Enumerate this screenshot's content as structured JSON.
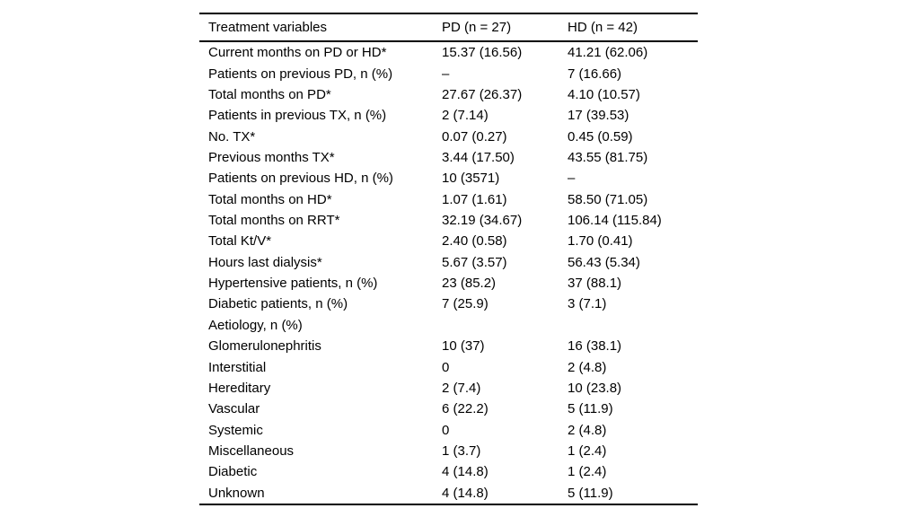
{
  "page": {
    "background": "#ffffff",
    "text_color": "#000000"
  },
  "table": {
    "columns": [
      "Treatment variables",
      "PD (n = 27)",
      "HD (n = 42)"
    ],
    "rows": [
      {
        "variable": "Current months on PD or HD*",
        "pd": "15.37 (16.56)",
        "hd": "41.21 (62.06)"
      },
      {
        "variable": "Patients on previous PD, n (%)",
        "pd": "–",
        "hd": "7 (16.66)"
      },
      {
        "variable": "Total months on PD*",
        "pd": "27.67 (26.37)",
        "hd": "4.10 (10.57)"
      },
      {
        "variable": "Patients in previous TX, n (%)",
        "pd": "2 (7.14)",
        "hd": "17 (39.53)"
      },
      {
        "variable": "No. TX*",
        "pd": "0.07 (0.27)",
        "hd": "0.45 (0.59)"
      },
      {
        "variable": "Previous months TX*",
        "pd": "3.44 (17.50)",
        "hd": "43.55 (81.75)"
      },
      {
        "variable": "Patients on previous HD, n (%)",
        "pd": "10 (3571)",
        "hd": "–"
      },
      {
        "variable": "Total months on HD*",
        "pd": "1.07 (1.61)",
        "hd": "58.50 (71.05)"
      },
      {
        "variable": "Total months on RRT*",
        "pd": "32.19 (34.67)",
        "hd": "106.14 (115.84)"
      },
      {
        "variable": "Total Kt/V*",
        "pd": "2.40 (0.58)",
        "hd": "1.70 (0.41)"
      },
      {
        "variable": "Hours last dialysis*",
        "pd": "5.67 (3.57)",
        "hd": "56.43 (5.34)"
      },
      {
        "variable": "Hypertensive patients, n (%)",
        "pd": "23 (85.2)",
        "hd": "37 (88.1)"
      },
      {
        "variable": "Diabetic patients, n (%)",
        "pd": "7 (25.9)",
        "hd": "3 (7.1)"
      },
      {
        "variable": "Aetiology, n (%)",
        "pd": "",
        "hd": ""
      },
      {
        "variable": "Glomerulonephritis",
        "pd": "10 (37)",
        "hd": "16 (38.1)"
      },
      {
        "variable": "Interstitial",
        "pd": "0",
        "hd": "2 (4.8)"
      },
      {
        "variable": "Hereditary",
        "pd": "2 (7.4)",
        "hd": "10 (23.8)"
      },
      {
        "variable": "Vascular",
        "pd": "6 (22.2)",
        "hd": "5 (11.9)"
      },
      {
        "variable": "Systemic",
        "pd": "0",
        "hd": "2 (4.8)"
      },
      {
        "variable": "Miscellaneous",
        "pd": "1 (3.7)",
        "hd": "1 (2.4)"
      },
      {
        "variable": "Diabetic",
        "pd": "4 (14.8)",
        "hd": "1 (2.4)"
      },
      {
        "variable": "Unknown",
        "pd": "4 (14.8)",
        "hd": "5 (11.9)"
      }
    ]
  }
}
